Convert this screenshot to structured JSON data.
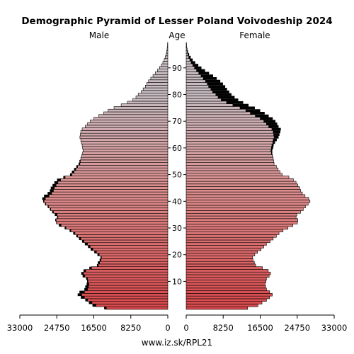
{
  "chart_data": {
    "type": "bar",
    "title": "Demographic Pyramid of Lesser Poland Voivodeship 2024",
    "left_label": "Male",
    "center_label": "Age",
    "right_label": "Female",
    "footer": "www.iz.sk/RPL21",
    "x_ticks_left": [
      "33000",
      "24750",
      "16500",
      "8250",
      "0"
    ],
    "x_ticks_right": [
      "0",
      "8250",
      "16500",
      "24750",
      "33000"
    ],
    "age_ticks": [
      "10",
      "20",
      "30",
      "40",
      "50",
      "60",
      "70",
      "80",
      "90"
    ],
    "xlim": [
      0,
      33000
    ],
    "age_range": [
      0,
      100
    ],
    "male": [
      14200,
      16800,
      17600,
      18400,
      19400,
      20100,
      19700,
      18600,
      18400,
      18100,
      18000,
      18200,
      19000,
      19300,
      18800,
      17500,
      15800,
      15600,
      15200,
      15000,
      15700,
      16400,
      17200,
      17800,
      18500,
      19100,
      19800,
      20400,
      21100,
      21900,
      23000,
      24300,
      24900,
      25100,
      24700,
      25200,
      25800,
      26300,
      26800,
      27400,
      27800,
      28000,
      27600,
      26800,
      26300,
      26100,
      25700,
      25300,
      24700,
      23300,
      21800,
      21400,
      20900,
      20400,
      19900,
      19700,
      19400,
      19200,
      19000,
      18900,
      19000,
      19100,
      19300,
      19400,
      19600,
      19500,
      19400,
      19100,
      18400,
      17900,
      17300,
      16500,
      15400,
      14300,
      13300,
      12000,
      10400,
      9000,
      7800,
      7100,
      6600,
      5900,
      5500,
      5000,
      4700,
      4300,
      3800,
      3300,
      2800,
      2300,
      1850,
      1450,
      1100,
      800,
      560,
      380,
      250,
      160,
      100,
      60
    ],
    "female": [
      13700,
      16000,
      16900,
      17900,
      18600,
      19200,
      18600,
      17900,
      17700,
      17600,
      17800,
      17900,
      18500,
      18800,
      18300,
      17000,
      15500,
      15200,
      14900,
      14800,
      15300,
      15900,
      16700,
      17300,
      17900,
      18700,
      19400,
      20100,
      20700,
      21600,
      22700,
      23800,
      24800,
      24900,
      24500,
      24700,
      25500,
      26100,
      26600,
      27200,
      27600,
      27300,
      26500,
      25900,
      25500,
      25300,
      24900,
      24500,
      23900,
      22900,
      21400,
      20900,
      20500,
      20100,
      19600,
      19500,
      19400,
      19300,
      19200,
      19200,
      19400,
      19500,
      19800,
      20200,
      20600,
      20800,
      21000,
      21100,
      20600,
      20300,
      19900,
      19300,
      18400,
      17500,
      16500,
      15300,
      13900,
      12700,
      11600,
      10800,
      10100,
      9600,
      9100,
      8700,
      8200,
      7600,
      6800,
      6000,
      5100,
      4200,
      3400,
      2700,
      2000,
      1450,
      1000,
      650,
      420,
      260,
      160,
      90
    ],
    "colors": {
      "young": "#d8484b",
      "middle": "#dc8f8f",
      "old": "#c8bcc2",
      "excess": "#000000",
      "outline": "#000000"
    }
  }
}
